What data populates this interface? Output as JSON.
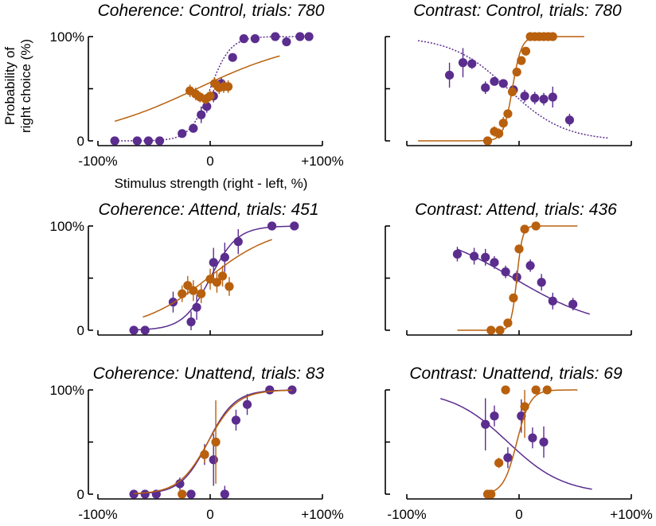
{
  "colors": {
    "purple": "#5b2d8e",
    "orange": "#b8600e"
  },
  "ylabel": "Probability of\nright choice (%)",
  "xlabel": "Stimulus strength (right - left, %)",
  "chart_data": [
    {
      "type": "scatter",
      "title": "Coherence: Control, trials: 780",
      "xlim": [
        -100,
        100
      ],
      "ylim": [
        0,
        100
      ],
      "x_ticks": [
        "-100%",
        "0",
        "+100%"
      ],
      "y_ticks": [
        "0",
        "100%"
      ],
      "series": [
        {
          "color": "purple",
          "points": [
            [
              -85,
              0
            ],
            [
              -65,
              0
            ],
            [
              -55,
              0
            ],
            [
              -45,
              0
            ],
            [
              -25,
              7
            ],
            [
              -15,
              12
            ],
            [
              -8,
              25
            ],
            [
              -3,
              33
            ],
            [
              3,
              43
            ],
            [
              10,
              55
            ],
            [
              20,
              80
            ],
            [
              30,
              98
            ],
            [
              40,
              98
            ],
            [
              58,
              100
            ],
            [
              68,
              95
            ],
            [
              80,
              100
            ],
            [
              88,
              100
            ]
          ],
          "errors": [
            [
              -8,
              8
            ],
            [
              -3,
              6
            ],
            [
              3,
              6
            ],
            [
              10,
              6
            ]
          ],
          "fit": {
            "mu": 0,
            "s": 9,
            "lo": 0,
            "hi": 100,
            "x0": -85,
            "x1": 88,
            "dotted": true
          }
        },
        {
          "color": "orange",
          "points": [
            [
              -18,
              48
            ],
            [
              -13,
              45
            ],
            [
              -9,
              42
            ],
            [
              -4,
              40
            ],
            [
              0,
              43
            ],
            [
              4,
              55
            ],
            [
              8,
              51
            ],
            [
              12,
              52
            ],
            [
              16,
              52
            ]
          ],
          "errors": [
            [
              -18,
              6
            ],
            [
              -13,
              6
            ],
            [
              -9,
              5
            ],
            [
              -4,
              5
            ],
            [
              0,
              5
            ],
            [
              4,
              6
            ],
            [
              8,
              6
            ],
            [
              12,
              6
            ],
            [
              16,
              6
            ]
          ],
          "fit": {
            "mu": -12,
            "s": 50,
            "lo": 0,
            "hi": 100,
            "x0": -85,
            "x1": 62
          }
        }
      ]
    },
    {
      "type": "scatter",
      "title": "Contrast: Control, trials: 780",
      "xlim": [
        -100,
        100
      ],
      "ylim": [
        0,
        100
      ],
      "x_ticks": [],
      "y_ticks": [],
      "series": [
        {
          "color": "purple",
          "points": [
            [
              -62,
              63
            ],
            [
              -50,
              75
            ],
            [
              -42,
              74
            ],
            [
              -30,
              51
            ],
            [
              -22,
              57
            ],
            [
              -14,
              55
            ],
            [
              -5,
              49
            ],
            [
              5,
              43
            ],
            [
              14,
              41
            ],
            [
              22,
              40
            ],
            [
              30,
              42
            ],
            [
              45,
              20
            ]
          ],
          "errors": [
            [
              -62,
              12
            ],
            [
              -50,
              14
            ],
            [
              -42,
              5
            ],
            [
              -30,
              6
            ],
            [
              -22,
              4
            ],
            [
              -14,
              4
            ],
            [
              -5,
              4
            ],
            [
              5,
              6
            ],
            [
              14,
              6
            ],
            [
              22,
              6
            ],
            [
              30,
              10
            ],
            [
              45,
              6
            ]
          ],
          "fit": {
            "mu": -10,
            "s": -25,
            "lo": 0,
            "hi": 100,
            "x0": -90,
            "x1": 80,
            "dotted": true
          }
        },
        {
          "color": "orange",
          "points": [
            [
              -28,
              0
            ],
            [
              -22,
              9
            ],
            [
              -18,
              7
            ],
            [
              -14,
              17
            ],
            [
              -10,
              26
            ],
            [
              -6,
              47
            ],
            [
              -2,
              66
            ],
            [
              2,
              77
            ],
            [
              6,
              86
            ],
            [
              10,
              100
            ],
            [
              14,
              100
            ],
            [
              18,
              100
            ],
            [
              22,
              100
            ],
            [
              26,
              100
            ],
            [
              30,
              100
            ]
          ],
          "errors": [
            [
              -22,
              5
            ],
            [
              -18,
              5
            ],
            [
              -14,
              6
            ]
          ],
          "fit": {
            "mu": -6,
            "s": 4,
            "lo": 0,
            "hi": 100,
            "x0": -90,
            "x1": 58
          }
        }
      ]
    },
    {
      "type": "scatter",
      "title": "Coherence: Attend, trials: 451",
      "xlim": [
        -100,
        100
      ],
      "ylim": [
        0,
        100
      ],
      "x_ticks": [],
      "y_ticks": [
        "0",
        "100%"
      ],
      "series": [
        {
          "color": "purple",
          "points": [
            [
              -68,
              0
            ],
            [
              -58,
              0
            ],
            [
              -33,
              27
            ],
            [
              -17,
              8
            ],
            [
              -12,
              22
            ],
            [
              3,
              65
            ],
            [
              13,
              70
            ],
            [
              25,
              85
            ],
            [
              55,
              100
            ],
            [
              75,
              100
            ]
          ],
          "errors": [
            [
              -33,
              10
            ],
            [
              -17,
              10
            ],
            [
              -12,
              12
            ],
            [
              3,
              14
            ],
            [
              13,
              14
            ],
            [
              25,
              12
            ]
          ],
          "fit": {
            "mu": 0,
            "s": 12,
            "lo": 0,
            "hi": 100,
            "x0": -68,
            "x1": 75
          }
        },
        {
          "color": "orange",
          "points": [
            [
              -25,
              35
            ],
            [
              -20,
              43
            ],
            [
              -15,
              38
            ],
            [
              -8,
              35
            ],
            [
              0,
              49
            ],
            [
              6,
              46
            ],
            [
              11,
              52
            ],
            [
              17,
              42
            ]
          ],
          "errors": [
            [
              -25,
              8
            ],
            [
              -20,
              9
            ],
            [
              -15,
              10
            ],
            [
              -8,
              9
            ],
            [
              0,
              10
            ],
            [
              6,
              10
            ],
            [
              11,
              10
            ],
            [
              17,
              9
            ]
          ],
          "fit": {
            "mu": -2,
            "s": 30,
            "lo": 0,
            "hi": 100,
            "x0": -60,
            "x1": 55
          }
        }
      ]
    },
    {
      "type": "scatter",
      "title": "Contrast: Attend, trials: 436",
      "xlim": [
        -100,
        100
      ],
      "ylim": [
        0,
        100
      ],
      "x_ticks": [],
      "y_ticks": [],
      "series": [
        {
          "color": "purple",
          "points": [
            [
              -55,
              73
            ],
            [
              -40,
              71
            ],
            [
              -30,
              70
            ],
            [
              -22,
              65
            ],
            [
              -12,
              56
            ],
            [
              -2,
              51
            ],
            [
              10,
              62
            ],
            [
              20,
              46
            ],
            [
              30,
              28
            ],
            [
              48,
              25
            ]
          ],
          "errors": [
            [
              -55,
              7
            ],
            [
              -40,
              8
            ],
            [
              -30,
              8
            ],
            [
              -22,
              6
            ],
            [
              -12,
              6
            ],
            [
              -2,
              6
            ],
            [
              10,
              6
            ],
            [
              20,
              8
            ],
            [
              30,
              8
            ],
            [
              48,
              6
            ]
          ],
          "fit": {
            "mu": -5,
            "s": -40,
            "lo": 0,
            "hi": 100,
            "x0": -55,
            "x1": 63
          }
        },
        {
          "color": "orange",
          "points": [
            [
              -25,
              0
            ],
            [
              -17,
              0
            ],
            [
              -10,
              7
            ],
            [
              -5,
              31
            ],
            [
              0,
              78
            ],
            [
              5,
              97
            ],
            [
              15,
              100
            ]
          ],
          "errors": [],
          "fit": {
            "mu": -2,
            "s": 2.5,
            "lo": 0,
            "hi": 100,
            "x0": -55,
            "x1": 52
          }
        }
      ]
    },
    {
      "type": "scatter",
      "title": "Coherence: Unattend, trials: 83",
      "xlim": [
        -100,
        100
      ],
      "ylim": [
        0,
        100
      ],
      "x_ticks": [
        "-100%",
        "0",
        "+100%"
      ],
      "y_ticks": [
        "0",
        "100%"
      ],
      "series": [
        {
          "color": "purple",
          "points": [
            [
              -68,
              0
            ],
            [
              -58,
              0
            ],
            [
              -48,
              0
            ],
            [
              -27,
              10
            ],
            [
              -17,
              0
            ],
            [
              -5,
              38
            ],
            [
              3,
              33
            ],
            [
              13,
              0
            ],
            [
              23,
              71
            ],
            [
              33,
              86
            ],
            [
              53,
              100
            ],
            [
              73,
              100
            ]
          ],
          "errors": [
            [
              -27,
              6
            ],
            [
              -5,
              10
            ],
            [
              3,
              25
            ],
            [
              13,
              8
            ],
            [
              23,
              10
            ],
            [
              33,
              10
            ]
          ],
          "fit": {
            "mu": -2,
            "s": 12,
            "lo": 0,
            "hi": 100,
            "x0": -68,
            "x1": 73
          }
        },
        {
          "color": "orange",
          "points": [
            [
              -25,
              0
            ],
            [
              -5,
              38
            ],
            [
              5,
              50
            ]
          ],
          "errors": [
            [
              -5,
              8
            ],
            [
              5,
              40
            ]
          ],
          "fit": {
            "mu": -2,
            "s": 13,
            "lo": 0,
            "hi": 100,
            "x0": -68,
            "x1": 73
          }
        }
      ]
    },
    {
      "type": "scatter",
      "title": "Contrast: Unattend, trials: 69",
      "xlim": [
        -100,
        100
      ],
      "ylim": [
        0,
        100
      ],
      "x_ticks": [
        "-100%",
        "0",
        "+100%"
      ],
      "y_ticks": [],
      "series": [
        {
          "color": "purple",
          "points": [
            [
              -30,
              67
            ],
            [
              -22,
              75
            ],
            [
              -10,
              35
            ],
            [
              2,
              75
            ],
            [
              12,
              54
            ],
            [
              22,
              50
            ]
          ],
          "errors": [
            [
              -30,
              25
            ],
            [
              -22,
              10
            ],
            [
              -10,
              10
            ],
            [
              2,
              16
            ],
            [
              12,
              10
            ],
            [
              22,
              15
            ]
          ],
          "fit": {
            "mu": -10,
            "s": -25,
            "lo": 0,
            "hi": 100,
            "x0": -70,
            "x1": 65
          }
        },
        {
          "color": "orange",
          "points": [
            [
              -28,
              0
            ],
            [
              -25,
              0
            ],
            [
              -18,
              30
            ],
            [
              -12,
              100
            ],
            [
              5,
              84
            ],
            [
              15,
              100
            ],
            [
              25,
              100
            ]
          ],
          "errors": [
            [
              -18,
              5
            ],
            [
              5,
              30
            ]
          ],
          "fit": {
            "mu": -2,
            "s": 6,
            "lo": 0,
            "hi": 100,
            "x0": -28,
            "x1": 52
          }
        }
      ]
    }
  ]
}
